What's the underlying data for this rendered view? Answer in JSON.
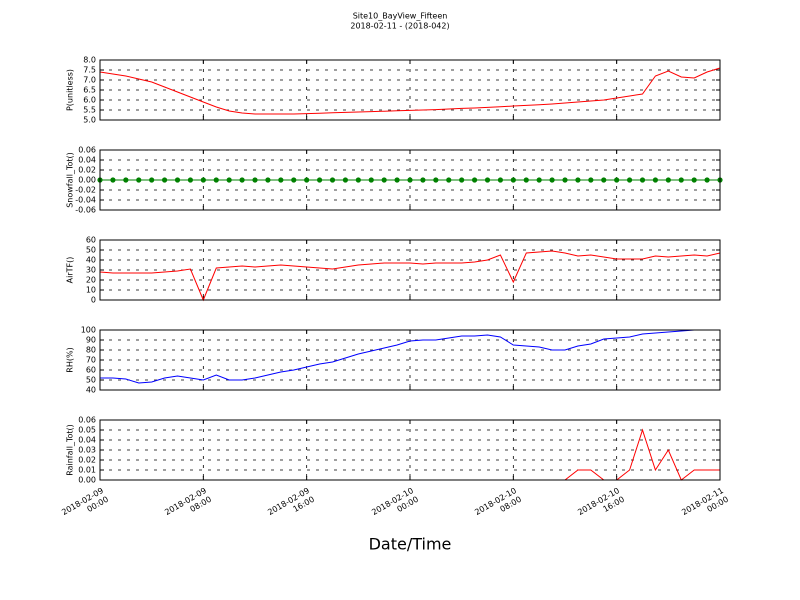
{
  "chart_data": [
    {
      "type": "line",
      "title": "Site10_BayView_Fifteen",
      "subtitle": "2018-02-11 - (2018-042)",
      "y_label": "P(unitless)",
      "xlim": [
        "2018-02-09 00:00",
        "2018-02-11 00:00"
      ],
      "ylim": [
        5,
        8
      ],
      "yticks": [
        {
          "value": 5,
          "label": "5.0"
        },
        5.5,
        {
          "value": 6,
          "label": "6.0"
        },
        6.5,
        {
          "value": 7,
          "label": "7.0"
        },
        7.5,
        {
          "value": 8,
          "label": "8.0"
        }
      ],
      "grid": true,
      "x": [
        "2018-02-09 00:00",
        "2018-02-09 01:00",
        "2018-02-09 02:00",
        "2018-02-09 03:00",
        "2018-02-09 04:00",
        "2018-02-09 05:00",
        "2018-02-09 06:00",
        "2018-02-09 07:00",
        "2018-02-09 08:00",
        "2018-02-09 09:00",
        "2018-02-09 10:00",
        "2018-02-09 11:00",
        "2018-02-09 12:00",
        "2018-02-09 13:00",
        "2018-02-09 14:00",
        "2018-02-09 15:00",
        "2018-02-09 16:00",
        "2018-02-09 17:00",
        "2018-02-09 18:00",
        "2018-02-09 19:00",
        "2018-02-09 20:00",
        "2018-02-09 21:00",
        "2018-02-09 22:00",
        "2018-02-09 23:00",
        "2018-02-10 00:00",
        "2018-02-10 01:00",
        "2018-02-10 02:00",
        "2018-02-10 03:00",
        "2018-02-10 04:00",
        "2018-02-10 05:00",
        "2018-02-10 06:00",
        "2018-02-10 07:00",
        "2018-02-10 08:00",
        "2018-02-10 09:00",
        "2018-02-10 10:00",
        "2018-02-10 11:00",
        "2018-02-10 12:00",
        "2018-02-10 13:00",
        "2018-02-10 14:00",
        "2018-02-10 15:00",
        "2018-02-10 16:00",
        "2018-02-10 17:00",
        "2018-02-10 18:00",
        "2018-02-10 19:00",
        "2018-02-10 20:00",
        "2018-02-10 21:00",
        "2018-02-10 22:00",
        "2018-02-10 23:00",
        "2018-02-11 00:00"
      ],
      "series": [
        {
          "color": "#ff0000",
          "values": [
            7.4,
            7.3,
            7.2,
            7.05,
            6.9,
            6.65,
            6.4,
            6.15,
            5.9,
            5.65,
            5.45,
            5.35,
            5.3,
            5.3,
            5.3,
            5.3,
            5.32,
            5.34,
            5.36,
            5.38,
            5.4,
            5.42,
            5.44,
            5.46,
            5.48,
            5.5,
            5.52,
            5.55,
            5.58,
            5.6,
            5.63,
            5.66,
            5.7,
            5.73,
            5.76,
            5.8,
            5.85,
            5.9,
            5.95,
            6.0,
            6.1,
            6.2,
            6.3,
            7.2,
            7.45,
            7.15,
            7.1,
            7.4,
            7.6
          ]
        }
      ]
    },
    {
      "type": "line",
      "y_label": "Snowfall_Tot()",
      "markers": true,
      "xlim": [
        "2018-02-09 00:00",
        "2018-02-11 00:00"
      ],
      "ylim": [
        -0.06,
        0.06
      ],
      "yticks": [
        -0.06,
        -0.04,
        -0.02,
        {
          "value": 0,
          "label": "0.00"
        },
        0.02,
        0.04,
        0.06
      ],
      "grid": true,
      "x": [
        "2018-02-09 00:00",
        "2018-02-09 01:00",
        "2018-02-09 02:00",
        "2018-02-09 03:00",
        "2018-02-09 04:00",
        "2018-02-09 05:00",
        "2018-02-09 06:00",
        "2018-02-09 07:00",
        "2018-02-09 08:00",
        "2018-02-09 09:00",
        "2018-02-09 10:00",
        "2018-02-09 11:00",
        "2018-02-09 12:00",
        "2018-02-09 13:00",
        "2018-02-09 14:00",
        "2018-02-09 15:00",
        "2018-02-09 16:00",
        "2018-02-09 17:00",
        "2018-02-09 18:00",
        "2018-02-09 19:00",
        "2018-02-09 20:00",
        "2018-02-09 21:00",
        "2018-02-09 22:00",
        "2018-02-09 23:00",
        "2018-02-10 00:00",
        "2018-02-10 01:00",
        "2018-02-10 02:00",
        "2018-02-10 03:00",
        "2018-02-10 04:00",
        "2018-02-10 05:00",
        "2018-02-10 06:00",
        "2018-02-10 07:00",
        "2018-02-10 08:00",
        "2018-02-10 09:00",
        "2018-02-10 10:00",
        "2018-02-10 11:00",
        "2018-02-10 12:00",
        "2018-02-10 13:00",
        "2018-02-10 14:00",
        "2018-02-10 15:00",
        "2018-02-10 16:00",
        "2018-02-10 17:00",
        "2018-02-10 18:00",
        "2018-02-10 19:00",
        "2018-02-10 20:00",
        "2018-02-10 21:00",
        "2018-02-10 22:00",
        "2018-02-10 23:00",
        "2018-02-11 00:00"
      ],
      "series": [
        {
          "color": "#008000",
          "values": [
            0,
            0,
            0,
            0,
            0,
            0,
            0,
            0,
            0,
            0,
            0,
            0,
            0,
            0,
            0,
            0,
            0,
            0,
            0,
            0,
            0,
            0,
            0,
            0,
            0,
            0,
            0,
            0,
            0,
            0,
            0,
            0,
            0,
            0,
            0,
            0,
            0,
            0,
            0,
            0,
            0,
            0,
            0,
            0,
            0,
            0,
            0,
            0,
            0
          ]
        }
      ]
    },
    {
      "type": "line",
      "y_label": "AirTF()",
      "xlim": [
        "2018-02-09 00:00",
        "2018-02-11 00:00"
      ],
      "ylim": [
        0,
        60
      ],
      "yticks": [
        0,
        10,
        20,
        30,
        40,
        50,
        60
      ],
      "grid": true,
      "x": [
        "2018-02-09 00:00",
        "2018-02-09 01:00",
        "2018-02-09 02:00",
        "2018-02-09 03:00",
        "2018-02-09 04:00",
        "2018-02-09 05:00",
        "2018-02-09 06:00",
        "2018-02-09 07:00",
        "2018-02-09 08:00",
        "2018-02-09 09:00",
        "2018-02-09 10:00",
        "2018-02-09 11:00",
        "2018-02-09 12:00",
        "2018-02-09 13:00",
        "2018-02-09 14:00",
        "2018-02-09 15:00",
        "2018-02-09 16:00",
        "2018-02-09 17:00",
        "2018-02-09 18:00",
        "2018-02-09 19:00",
        "2018-02-09 20:00",
        "2018-02-09 21:00",
        "2018-02-09 22:00",
        "2018-02-09 23:00",
        "2018-02-10 00:00",
        "2018-02-10 01:00",
        "2018-02-10 02:00",
        "2018-02-10 03:00",
        "2018-02-10 04:00",
        "2018-02-10 05:00",
        "2018-02-10 06:00",
        "2018-02-10 07:00",
        "2018-02-10 08:00",
        "2018-02-10 09:00",
        "2018-02-10 10:00",
        "2018-02-10 11:00",
        "2018-02-10 12:00",
        "2018-02-10 13:00",
        "2018-02-10 14:00",
        "2018-02-10 15:00",
        "2018-02-10 16:00",
        "2018-02-10 17:00",
        "2018-02-10 18:00",
        "2018-02-10 19:00",
        "2018-02-10 20:00",
        "2018-02-10 21:00",
        "2018-02-10 22:00",
        "2018-02-10 23:00",
        "2018-02-11 00:00"
      ],
      "series": [
        {
          "color": "#ff0000",
          "values": [
            28,
            27,
            27,
            27,
            27,
            28,
            29,
            31,
            0,
            32,
            33,
            34,
            33,
            34,
            35,
            34,
            33,
            32,
            31,
            33,
            35,
            36,
            37,
            37,
            37,
            36,
            37,
            37,
            37,
            38,
            40,
            45,
            18,
            47,
            48,
            49,
            47,
            44,
            45,
            43,
            41,
            41,
            41,
            44,
            43,
            44,
            45,
            44,
            47
          ]
        }
      ]
    },
    {
      "type": "line",
      "y_label": "RH(%)",
      "xlim": [
        "2018-02-09 00:00",
        "2018-02-11 00:00"
      ],
      "ylim": [
        40,
        100
      ],
      "yticks": [
        40,
        50,
        60,
        70,
        80,
        90,
        100
      ],
      "grid": true,
      "x": [
        "2018-02-09 00:00",
        "2018-02-09 01:00",
        "2018-02-09 02:00",
        "2018-02-09 03:00",
        "2018-02-09 04:00",
        "2018-02-09 05:00",
        "2018-02-09 06:00",
        "2018-02-09 07:00",
        "2018-02-09 08:00",
        "2018-02-09 09:00",
        "2018-02-09 10:00",
        "2018-02-09 11:00",
        "2018-02-09 12:00",
        "2018-02-09 13:00",
        "2018-02-09 14:00",
        "2018-02-09 15:00",
        "2018-02-09 16:00",
        "2018-02-09 17:00",
        "2018-02-09 18:00",
        "2018-02-09 19:00",
        "2018-02-09 20:00",
        "2018-02-09 21:00",
        "2018-02-09 22:00",
        "2018-02-09 23:00",
        "2018-02-10 00:00",
        "2018-02-10 01:00",
        "2018-02-10 02:00",
        "2018-02-10 03:00",
        "2018-02-10 04:00",
        "2018-02-10 05:00",
        "2018-02-10 06:00",
        "2018-02-10 07:00",
        "2018-02-10 08:00",
        "2018-02-10 09:00",
        "2018-02-10 10:00",
        "2018-02-10 11:00",
        "2018-02-10 12:00",
        "2018-02-10 13:00",
        "2018-02-10 14:00",
        "2018-02-10 15:00",
        "2018-02-10 16:00",
        "2018-02-10 17:00",
        "2018-02-10 18:00",
        "2018-02-10 19:00",
        "2018-02-10 20:00",
        "2018-02-10 21:00",
        "2018-02-10 22:00",
        "2018-02-10 23:00",
        "2018-02-11 00:00"
      ],
      "series": [
        {
          "color": "#0000ff",
          "values": [
            52,
            52,
            51,
            47,
            48,
            52,
            54,
            52,
            50,
            55,
            50,
            50,
            52,
            55,
            58,
            60,
            63,
            66,
            68,
            72,
            76,
            79,
            82,
            85,
            89,
            90,
            90,
            92,
            94,
            94,
            95,
            93,
            85,
            84,
            83,
            80,
            80,
            84,
            86,
            91,
            92,
            93,
            96,
            97,
            98,
            99,
            100,
            100,
            100
          ]
        }
      ]
    },
    {
      "type": "line",
      "y_label": "Rainfall_Tot()",
      "x_label": "Date/Time",
      "xlim": [
        "2018-02-09 00:00",
        "2018-02-11 00:00"
      ],
      "xticks": [
        {
          "value": "2018-02-09 00:00",
          "label": "2018-02-09\n00:00"
        },
        {
          "value": "2018-02-09 08:00",
          "label": "2018-02-09\n08:00"
        },
        {
          "value": "2018-02-09 16:00",
          "label": "2018-02-09\n16:00"
        },
        {
          "value": "2018-02-10 00:00",
          "label": "2018-02-10\n00:00"
        },
        {
          "value": "2018-02-10 08:00",
          "label": "2018-02-10\n08:00"
        },
        {
          "value": "2018-02-10 16:00",
          "label": "2018-02-10\n16:00"
        },
        {
          "value": "2018-02-11 00:00",
          "label": "2018-02-11\n00:00"
        }
      ],
      "ylim": [
        0,
        0.06
      ],
      "yticks": [
        {
          "value": 0,
          "label": "0.00"
        },
        0.01,
        0.02,
        0.03,
        0.04,
        0.05,
        0.06
      ],
      "grid": true,
      "x": [
        "2018-02-09 00:00",
        "2018-02-09 01:00",
        "2018-02-09 02:00",
        "2018-02-09 03:00",
        "2018-02-09 04:00",
        "2018-02-09 05:00",
        "2018-02-09 06:00",
        "2018-02-09 07:00",
        "2018-02-09 08:00",
        "2018-02-09 09:00",
        "2018-02-09 10:00",
        "2018-02-09 11:00",
        "2018-02-09 12:00",
        "2018-02-09 13:00",
        "2018-02-09 14:00",
        "2018-02-09 15:00",
        "2018-02-09 16:00",
        "2018-02-09 17:00",
        "2018-02-09 18:00",
        "2018-02-09 19:00",
        "2018-02-09 20:00",
        "2018-02-09 21:00",
        "2018-02-09 22:00",
        "2018-02-09 23:00",
        "2018-02-10 00:00",
        "2018-02-10 01:00",
        "2018-02-10 02:00",
        "2018-02-10 03:00",
        "2018-02-10 04:00",
        "2018-02-10 05:00",
        "2018-02-10 06:00",
        "2018-02-10 07:00",
        "2018-02-10 08:00",
        "2018-02-10 09:00",
        "2018-02-10 10:00",
        "2018-02-10 11:00",
        "2018-02-10 12:00",
        "2018-02-10 13:00",
        "2018-02-10 14:00",
        "2018-02-10 15:00",
        "2018-02-10 16:00",
        "2018-02-10 17:00",
        "2018-02-10 18:00",
        "2018-02-10 19:00",
        "2018-02-10 20:00",
        "2018-02-10 21:00",
        "2018-02-10 22:00",
        "2018-02-10 23:00",
        "2018-02-11 00:00"
      ],
      "series": [
        {
          "color": "#ff0000",
          "values": [
            0,
            0,
            0,
            0,
            0,
            0,
            0,
            0,
            0,
            0,
            0,
            0,
            0,
            0,
            0,
            0,
            0,
            0,
            0,
            0,
            0,
            0,
            0,
            0,
            0,
            0,
            0,
            0,
            0,
            0,
            0,
            0,
            0,
            0,
            0,
            0,
            0,
            0.01,
            0.01,
            0,
            0,
            0.01,
            0.05,
            0.01,
            0.03,
            0,
            0.01,
            0.01,
            0.01
          ]
        }
      ]
    }
  ]
}
